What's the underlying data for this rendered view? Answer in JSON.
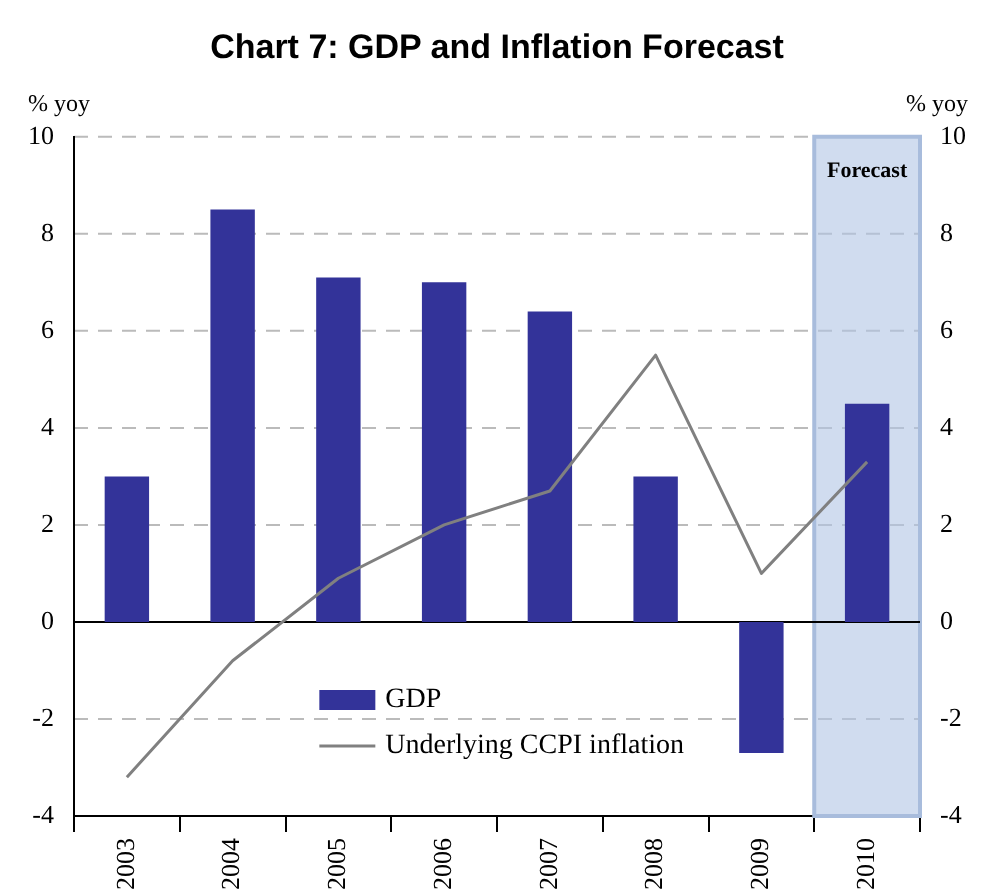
{
  "chart_data": {
    "type": "bar",
    "title": "Chart 7: GDP and Inflation Forecast",
    "ylabel": "% yoy",
    "y2label": "% yoy",
    "categories": [
      "2003",
      "2004",
      "2005",
      "2006",
      "2007",
      "2008",
      "2009",
      "2010"
    ],
    "series": [
      {
        "name": "GDP",
        "color": "#333399",
        "colors": [
          "#333399",
          "#333399",
          "#333399",
          "#333399",
          "#333399",
          "#333399",
          "#333399",
          "#333399"
        ],
        "values": [
          3.0,
          8.5,
          7.1,
          7.0,
          6.4,
          3.0,
          -2.7,
          4.5
        ]
      },
      {
        "name": "Underlying CCPI inflation",
        "type": "line",
        "color": "#808080",
        "values": [
          -3.2,
          -0.8,
          0.9,
          2.0,
          2.7,
          5.5,
          1.0,
          3.3
        ]
      }
    ],
    "ylim": [
      -4,
      10
    ],
    "yticks": [
      -4,
      -2,
      0,
      2,
      4,
      6,
      8,
      10
    ],
    "y2lim": [
      -4,
      10
    ],
    "y2ticks": [
      -4,
      -2,
      0,
      2,
      4,
      6,
      8,
      10
    ],
    "bands": [
      {
        "axis": "x",
        "from": "2010",
        "to": "2010",
        "label": "Forecast",
        "color": "#b0c4e4"
      }
    ],
    "grid": "y",
    "legend": "bottom",
    "marker": "none",
    "line_style": "solid"
  }
}
